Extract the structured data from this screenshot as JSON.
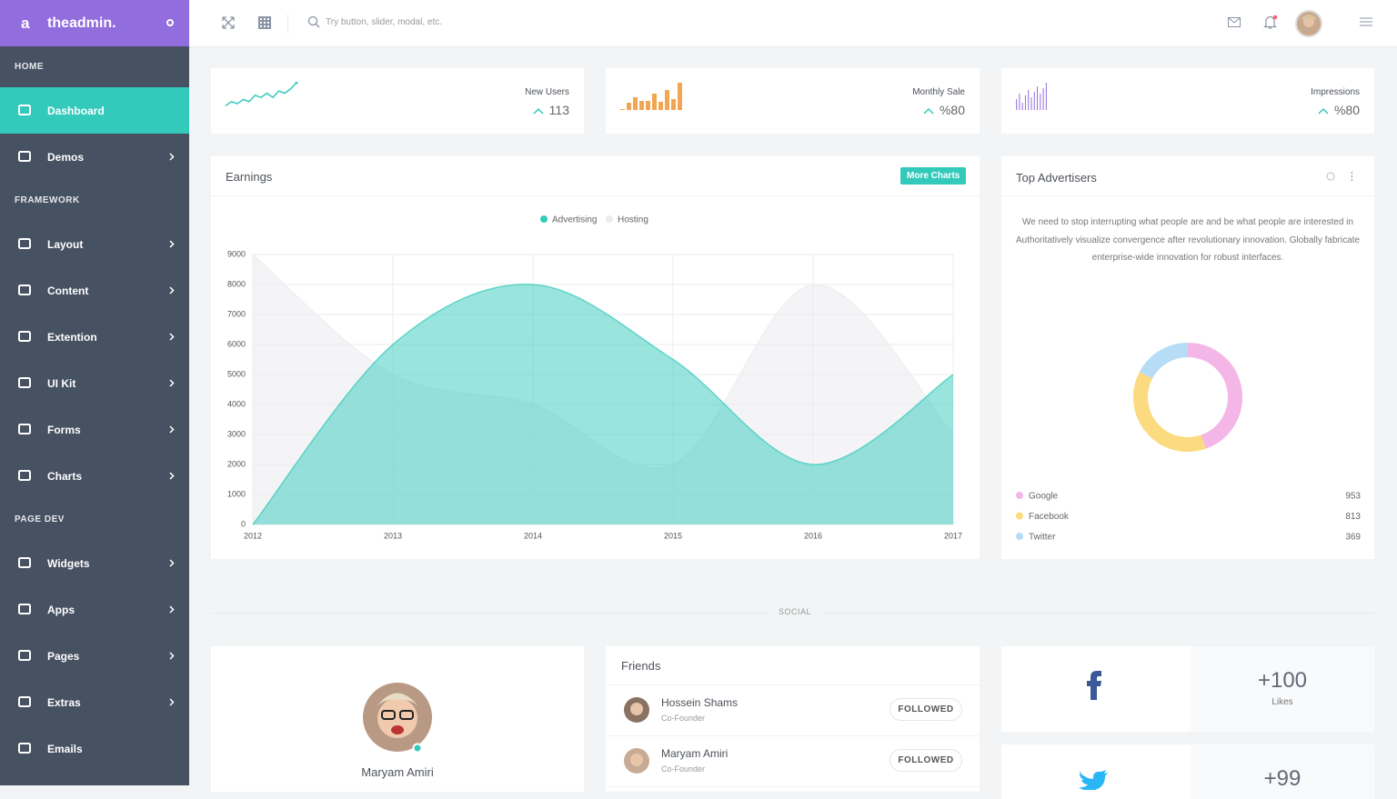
{
  "brand": {
    "logo": "a",
    "name": "theadmin."
  },
  "sidebar": {
    "sections": [
      {
        "title": "HOME",
        "items": [
          "Dashboard",
          "Demos"
        ]
      },
      {
        "title": "FRAMEWORK",
        "items": [
          "Layout",
          "Content",
          "Extention",
          "UI Kit",
          "Forms",
          "Charts"
        ]
      },
      {
        "title": "PAGE DEV",
        "items": [
          "Widgets",
          "Apps",
          "Pages",
          "Extras",
          "Emails"
        ]
      }
    ]
  },
  "topbar": {
    "search_placeholder": "Try button, slider, modal, etc."
  },
  "stats": [
    {
      "label": "New Users",
      "value": "113",
      "trend": {
        "type": "line",
        "color": "#33cabb",
        "values": [
          2,
          4,
          3,
          5,
          4,
          7,
          6,
          8,
          6,
          9,
          8,
          10,
          13
        ]
      }
    },
    {
      "label": "Monthly Sale",
      "value": "%80",
      "trend": {
        "type": "bar",
        "color": "#f2a654",
        "values": [
          1,
          8,
          14,
          10,
          10,
          18,
          9,
          22,
          12,
          30
        ]
      }
    },
    {
      "label": "Impressions",
      "value": "%80",
      "trend": {
        "type": "bar",
        "color": "#926dde",
        "values": [
          12,
          18,
          8,
          16,
          22,
          14,
          20,
          26,
          18,
          24,
          30
        ]
      }
    }
  ],
  "chart_data": [
    {
      "type": "area",
      "title": "Earnings",
      "action": "More Charts",
      "categories": [
        "2012",
        "2013",
        "2014",
        "2015",
        "2016",
        "2017"
      ],
      "series": [
        {
          "name": "Advertising",
          "color": "#33cabb",
          "values": [
            0,
            6000,
            8000,
            5500,
            2000,
            5000
          ]
        },
        {
          "name": "Hosting",
          "color": "#ececf0",
          "values": [
            9000,
            5000,
            4000,
            2000,
            8000,
            3000
          ]
        }
      ],
      "ylim": [
        0,
        9000
      ],
      "yticks": [
        0,
        1000,
        2000,
        3000,
        4000,
        5000,
        6000,
        7000,
        8000,
        9000
      ],
      "grid": true
    },
    {
      "type": "doughnut",
      "title": "Top Advertisers",
      "description": "We need to stop interrupting what people are and be what people are interested in Authoritatively visualize convergence after revolutionary innovation. Globally fabricate enterprise-wide innovation for robust interfaces.",
      "categories": [
        "Google",
        "Facebook",
        "Twitter"
      ],
      "values": [
        953,
        813,
        369
      ],
      "colors": [
        "#f3b6e6",
        "#fcda7f",
        "#b6dcf6"
      ]
    }
  ],
  "social": {
    "title": "SOCIAL",
    "profile": {
      "name": "Maryam Amiri"
    },
    "friends": {
      "title": "Friends",
      "people": [
        {
          "name": "Hossein Shams",
          "role": "Co-Founder",
          "action": "FOLLOWED"
        },
        {
          "name": "Maryam Amiri",
          "role": "Co-Founder",
          "action": "FOLLOWED"
        }
      ]
    },
    "facebook": {
      "count": "+100",
      "label": "Likes"
    },
    "twitter": {
      "count": "+99"
    }
  }
}
